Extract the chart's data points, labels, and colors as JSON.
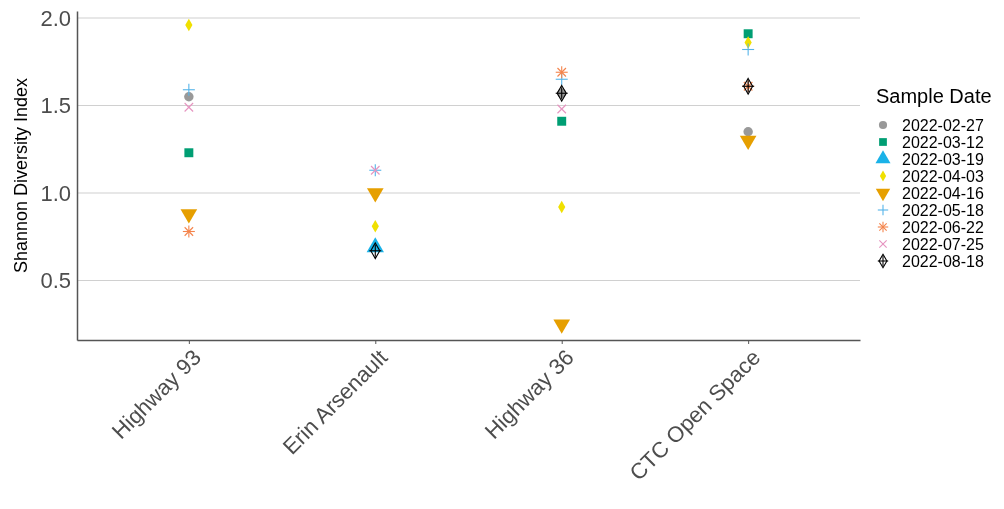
{
  "chart_data": {
    "type": "scatter",
    "ylabel": "Shannon Diversity Index",
    "legend_title": "Sample Date",
    "categories": [
      "Highway 93",
      "Erin Arsenault",
      "Highway 36",
      "CTC Open Space"
    ],
    "ylim": [
      0.16,
      2.04
    ],
    "yticks": [
      {
        "value": 0.5,
        "label": "0.5"
      },
      {
        "value": 1,
        "label": "1.0"
      },
      {
        "value": 1.5,
        "label": "1.5"
      },
      {
        "value": 2,
        "label": "2.0"
      }
    ],
    "grid": "y",
    "legend": "right",
    "series": [
      {
        "name": "2022-02-27",
        "color": "#999999",
        "marker": "circle",
        "values": [
          1.55,
          null,
          1.57,
          1.35
        ]
      },
      {
        "name": "2022-03-12",
        "color": "#009e73",
        "marker": "square",
        "values": [
          1.23,
          null,
          1.41,
          1.91
        ]
      },
      {
        "name": "2022-03-19",
        "color": "#1ab2e8",
        "marker": "triangle",
        "values": [
          null,
          0.69,
          null,
          null
        ]
      },
      {
        "name": "2022-04-03",
        "color": "#f0e000",
        "marker": "diamond",
        "values": [
          1.96,
          0.81,
          0.92,
          1.86
        ]
      },
      {
        "name": "2022-04-16",
        "color": "#e69f00",
        "marker": "triangle-down",
        "values": [
          0.88,
          1.0,
          0.25,
          1.3
        ]
      },
      {
        "name": "2022-05-18",
        "color": "#56b4e9",
        "marker": "plus",
        "values": [
          1.59,
          1.13,
          1.65,
          1.82
        ]
      },
      {
        "name": "2022-06-22",
        "color": "#f4844c",
        "marker": "cross",
        "values": [
          0.78,
          null,
          1.69,
          1.61
        ]
      },
      {
        "name": "2022-07-25",
        "color": "#e694c0",
        "marker": "x",
        "values": [
          1.49,
          1.13,
          1.48,
          null
        ]
      },
      {
        "name": "2022-08-18",
        "color": "#000000",
        "marker": "diamond-plus",
        "values": [
          null,
          0.67,
          1.57,
          1.61
        ]
      }
    ]
  }
}
